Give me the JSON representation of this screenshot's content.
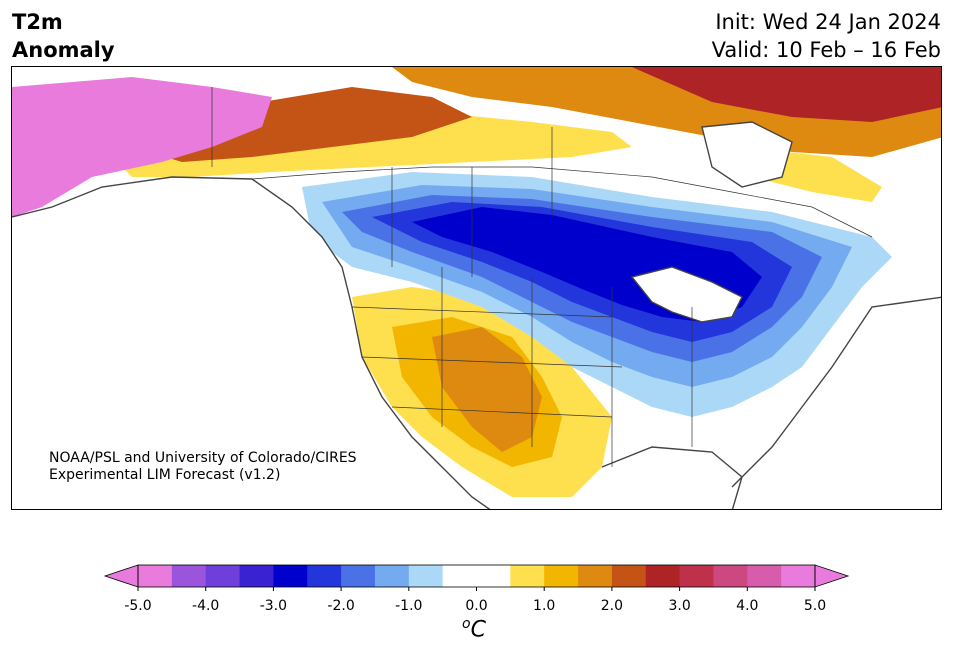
{
  "header": {
    "title_line1": "T2m",
    "title_line2": "Anomaly",
    "init": "Init: Wed 24 Jan 2024",
    "valid": "Valid: 10 Feb – 16 Feb"
  },
  "credit": {
    "line1": "NOAA/PSL and University of Colorado/CIRES",
    "line2": "Experimental LIM Forecast (v1.2)"
  },
  "colorbar": {
    "unit_base": "C",
    "unit_sup": "o",
    "tick_labels": [
      "-5.0",
      "-4.0",
      "-3.0",
      "-2.0",
      "-1.0",
      "0.0",
      "1.0",
      "2.0",
      "3.0",
      "4.0",
      "5.0"
    ],
    "colors": [
      "#e87bdc",
      "#9a55dc",
      "#6e3fdb",
      "#3a22d3",
      "#0000cc",
      "#2236dc",
      "#4a72e6",
      "#74aaf0",
      "#acd8f8",
      "#ffffff",
      "#ffffff",
      "#fee04f",
      "#f2b500",
      "#de8a10",
      "#c45316",
      "#ae2326",
      "#bf304a",
      "#cc4880",
      "#d85cac",
      "#e87bdc"
    ],
    "under_color": "#e87bdc",
    "over_color": "#e87bdc"
  }
}
